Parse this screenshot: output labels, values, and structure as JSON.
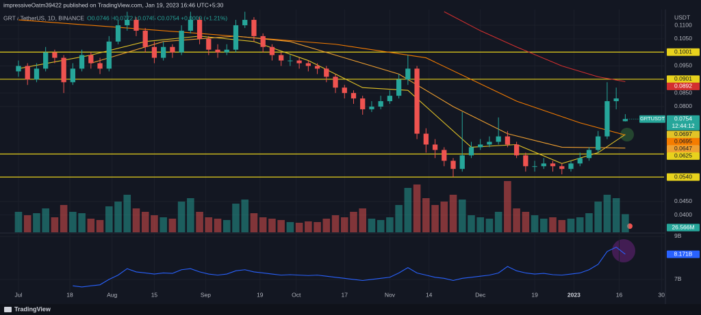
{
  "header": {
    "text": "impressiveOatm39422 published on TradingView.com, Jan 19, 2023 16:46 UTC+5:30"
  },
  "footer": {
    "brand": "TradingView"
  },
  "chart_data": {
    "type": "candlestick",
    "symbol": "GRT / TetherUS, 1D, BINANCE",
    "ohlc_legend": "O0.0746 H0.0772 L0.0745 C0.0754 +0.0009 (+1.21%)",
    "currency": "USDT",
    "up_color": "#26a69a",
    "down_color": "#ef5350",
    "xlim": [
      -2.04,
      71.28
    ],
    "xticks": [
      {
        "value": 0,
        "label": "Jul"
      },
      {
        "value": 5.67,
        "label": "18"
      },
      {
        "value": 10.33,
        "label": "Aug"
      },
      {
        "value": 15,
        "label": "15"
      },
      {
        "value": 20.67,
        "label": "Sep"
      },
      {
        "value": 26.67,
        "label": "19"
      },
      {
        "value": 30.67,
        "label": "Oct"
      },
      {
        "value": 36,
        "label": "17"
      },
      {
        "value": 41,
        "label": "Nov"
      },
      {
        "value": 45.33,
        "label": "14"
      },
      {
        "value": 51,
        "label": "Dec"
      },
      {
        "value": 57,
        "label": "19"
      },
      {
        "value": 61.33,
        "label": "2023"
      },
      {
        "value": 66.33,
        "label": "16"
      },
      {
        "value": 71,
        "label": "30"
      }
    ],
    "ylim": [
      0.0336,
      0.1158
    ],
    "yticks": [
      {
        "value": 0.11,
        "label": "0.1100"
      },
      {
        "value": 0.105,
        "label": "0.1050"
      },
      {
        "value": 0.095,
        "label": "0.0950"
      },
      {
        "value": 0.085,
        "label": "0.0850"
      },
      {
        "value": 0.08,
        "label": "0.0800"
      },
      {
        "value": 0.045,
        "label": "0.0450"
      },
      {
        "value": 0.04,
        "label": "0.0400"
      }
    ],
    "candles": [
      [
        0.093,
        0.097,
        0.091,
        0.095
      ],
      [
        0.095,
        0.096,
        0.088,
        0.09
      ],
      [
        0.09,
        0.096,
        0.089,
        0.094
      ],
      [
        0.094,
        0.102,
        0.093,
        0.1
      ],
      [
        0.1,
        0.101,
        0.096,
        0.098
      ],
      [
        0.098,
        0.099,
        0.085,
        0.089
      ],
      [
        0.089,
        0.096,
        0.088,
        0.094
      ],
      [
        0.094,
        0.101,
        0.093,
        0.099
      ],
      [
        0.099,
        0.1,
        0.094,
        0.096
      ],
      [
        0.096,
        0.098,
        0.092,
        0.094
      ],
      [
        0.094,
        0.106,
        0.093,
        0.104
      ],
      [
        0.104,
        0.112,
        0.103,
        0.11
      ],
      [
        0.11,
        0.115,
        0.108,
        0.112
      ],
      [
        0.112,
        0.113,
        0.106,
        0.108
      ],
      [
        0.108,
        0.109,
        0.1,
        0.102
      ],
      [
        0.102,
        0.104,
        0.096,
        0.098
      ],
      [
        0.098,
        0.104,
        0.097,
        0.102
      ],
      [
        0.102,
        0.103,
        0.098,
        0.1
      ],
      [
        0.1,
        0.11,
        0.099,
        0.108
      ],
      [
        0.108,
        0.115,
        0.107,
        0.112
      ],
      [
        0.112,
        0.113,
        0.103,
        0.105
      ],
      [
        0.105,
        0.106,
        0.099,
        0.101
      ],
      [
        0.101,
        0.103,
        0.098,
        0.1
      ],
      [
        0.1,
        0.103,
        0.099,
        0.101
      ],
      [
        0.101,
        0.112,
        0.1,
        0.11
      ],
      [
        0.11,
        0.115,
        0.109,
        0.112
      ],
      [
        0.112,
        0.113,
        0.104,
        0.106
      ],
      [
        0.106,
        0.107,
        0.1,
        0.102
      ],
      [
        0.102,
        0.103,
        0.097,
        0.099
      ],
      [
        0.099,
        0.1,
        0.095,
        0.097
      ],
      [
        0.097,
        0.099,
        0.095,
        0.097
      ],
      [
        0.097,
        0.098,
        0.094,
        0.096
      ],
      [
        0.096,
        0.097,
        0.093,
        0.095
      ],
      [
        0.095,
        0.096,
        0.092,
        0.094
      ],
      [
        0.094,
        0.095,
        0.089,
        0.091
      ],
      [
        0.091,
        0.092,
        0.085,
        0.087
      ],
      [
        0.087,
        0.088,
        0.083,
        0.085
      ],
      [
        0.085,
        0.086,
        0.081,
        0.083
      ],
      [
        0.083,
        0.084,
        0.077,
        0.079
      ],
      [
        0.079,
        0.082,
        0.078,
        0.08
      ],
      [
        0.08,
        0.084,
        0.079,
        0.082
      ],
      [
        0.082,
        0.086,
        0.081,
        0.084
      ],
      [
        0.084,
        0.092,
        0.083,
        0.09
      ],
      [
        0.09,
        0.099,
        0.088,
        0.094
      ],
      [
        0.094,
        0.095,
        0.068,
        0.07
      ],
      [
        0.07,
        0.072,
        0.063,
        0.066
      ],
      [
        0.066,
        0.068,
        0.061,
        0.064
      ],
      [
        0.064,
        0.065,
        0.058,
        0.06
      ],
      [
        0.06,
        0.061,
        0.054,
        0.057
      ],
      [
        0.057,
        0.078,
        0.056,
        0.062
      ],
      [
        0.062,
        0.067,
        0.061,
        0.065
      ],
      [
        0.065,
        0.068,
        0.064,
        0.066
      ],
      [
        0.066,
        0.069,
        0.065,
        0.067
      ],
      [
        0.067,
        0.076,
        0.066,
        0.069
      ],
      [
        0.069,
        0.071,
        0.065,
        0.066
      ],
      [
        0.066,
        0.067,
        0.061,
        0.062
      ],
      [
        0.062,
        0.063,
        0.056,
        0.058
      ],
      [
        0.058,
        0.06,
        0.056,
        0.058
      ],
      [
        0.058,
        0.061,
        0.057,
        0.059
      ],
      [
        0.059,
        0.06,
        0.056,
        0.058
      ],
      [
        0.058,
        0.059,
        0.055,
        0.057
      ],
      [
        0.057,
        0.06,
        0.056,
        0.059
      ],
      [
        0.059,
        0.063,
        0.058,
        0.061
      ],
      [
        0.061,
        0.065,
        0.06,
        0.064
      ],
      [
        0.064,
        0.071,
        0.063,
        0.069
      ],
      [
        0.069,
        0.089,
        0.068,
        0.082
      ],
      [
        0.082,
        0.087,
        0.079,
        0.083
      ],
      [
        0.0746,
        0.0772,
        0.0745,
        0.0754
      ]
    ],
    "last_price": {
      "ticker": "GRTUSDT",
      "value": 0.0754,
      "countdown": "12:44:12"
    },
    "levels": {
      "color": "#e8d21d",
      "values": [
        0.1001,
        0.0901,
        0.0625,
        {
          "value": 0.054,
          "label": "0.0540"
        }
      ]
    },
    "moving_averages": [
      {
        "color": "#e2c327",
        "x": [
          0,
          8,
          14,
          20,
          26,
          32,
          38,
          43,
          46,
          50,
          55,
          60,
          64,
          67
        ],
        "values": [
          0.094,
          0.099,
          0.104,
          0.106,
          0.104,
          0.097,
          0.087,
          0.086,
          0.077,
          0.065,
          0.066,
          0.059,
          0.063,
          0.0697
        ]
      },
      {
        "color": "#f57c00",
        "x": [
          0,
          20,
          35,
          45,
          55,
          62,
          67
        ],
        "values": [
          0.112,
          0.107,
          0.103,
          0.098,
          0.082,
          0.074,
          0.0695
        ]
      },
      {
        "color": "#f0a030",
        "x": [
          8,
          16,
          24,
          30,
          36,
          42,
          48,
          54,
          60,
          67
        ],
        "values": [
          0.096,
          0.104,
          0.106,
          0.104,
          0.098,
          0.092,
          0.08,
          0.07,
          0.065,
          0.0647
        ]
      },
      {
        "color": "#d32f2f",
        "x": [
          47,
          51,
          55,
          60,
          64,
          67
        ],
        "values": [
          0.115,
          0.108,
          0.102,
          0.095,
          0.091,
          0.0892
        ]
      }
    ],
    "volume": {
      "ylim": [
        0,
        100
      ],
      "values": [
        30,
        25,
        28,
        35,
        22,
        40,
        30,
        28,
        20,
        18,
        38,
        45,
        55,
        35,
        30,
        25,
        22,
        20,
        45,
        50,
        30,
        22,
        20,
        18,
        42,
        48,
        28,
        22,
        20,
        18,
        15,
        14,
        16,
        15,
        20,
        25,
        22,
        30,
        35,
        20,
        18,
        22,
        40,
        65,
        70,
        50,
        40,
        45,
        55,
        48,
        25,
        22,
        20,
        30,
        75,
        35,
        30,
        25,
        20,
        22,
        18,
        20,
        22,
        28,
        45,
        55,
        50,
        26.566
      ],
      "last_label": "26.566M"
    },
    "indicator": {
      "color": "#2962ff",
      "ylim": [
        6.33,
        9.095
      ],
      "yticks": [
        {
          "value": 9,
          "label": "9B"
        },
        {
          "value": 7,
          "label": "7B"
        }
      ],
      "values": [
        null,
        null,
        null,
        null,
        null,
        null,
        6.7,
        6.65,
        6.7,
        6.75,
        7.0,
        7.2,
        7.5,
        7.35,
        7.3,
        7.25,
        7.3,
        7.28,
        7.45,
        7.5,
        7.35,
        7.25,
        7.2,
        7.25,
        7.4,
        7.45,
        7.35,
        7.3,
        7.25,
        7.2,
        7.22,
        7.2,
        7.18,
        7.2,
        7.15,
        7.1,
        7.05,
        7.0,
        6.95,
        7.0,
        7.05,
        7.1,
        7.3,
        7.55,
        7.3,
        7.2,
        7.1,
        7.05,
        6.95,
        7.05,
        7.1,
        7.15,
        7.2,
        7.3,
        7.6,
        7.4,
        7.3,
        7.25,
        7.28,
        7.22,
        7.2,
        7.25,
        7.3,
        7.45,
        7.7,
        8.3,
        8.5,
        8.171
      ],
      "last_label": "8.171B"
    }
  }
}
